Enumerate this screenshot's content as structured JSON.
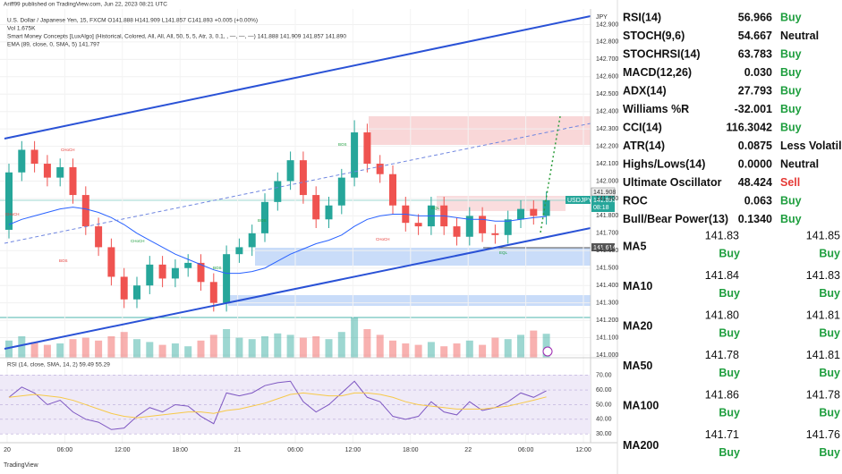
{
  "header": {
    "publisher": "Ariff99 published on TradingView.com, Jun 22, 2023 08:21 UTC",
    "symbol_line": "U.S. Dollar / Japanese Yen, 15, FXCM  O141.888 H141.909 L141.857 C141.893 +0.005 (+0.00%)",
    "volume_line": "Vol 1.675K",
    "smc_line": "Smart Money Concepts [LuxAlgo] (Historical, Colored, All, All, All, 50, 5, 5, Atr, 3, 0.1, , —, —, —)  141.888 141.909 141.857 141.890",
    "ema_line": "EMA (89, close, 0, SMA, 5)  141.797",
    "currency": "JPY",
    "footer": "TradingView"
  },
  "annotations": [
    "CHoCH",
    "BOS",
    "BOS",
    "CHoCH",
    "BOS",
    "EQL",
    "CHoCH",
    "EQL",
    "CHoCH",
    "BOS"
  ],
  "price_tags": [
    "141.908",
    "USDJPY",
    "141.893",
    "08:18",
    "141.614"
  ],
  "chart_data": [
    {
      "type": "candlestick",
      "up_color": "#26a69a",
      "down_color": "#ef5350",
      "xticks": [
        "20",
        "06:00",
        "12:00",
        "18:00",
        "21",
        "06:00",
        "12:00",
        "18:00",
        "22",
        "06:00",
        "12:00"
      ],
      "open": [
        141.72,
        142.05,
        142.18,
        142.1,
        142.02,
        142.08,
        141.92,
        141.74,
        141.62,
        141.45,
        141.32,
        141.4,
        141.52,
        141.44,
        141.5,
        141.53,
        141.42,
        141.3,
        141.58,
        141.62,
        141.7,
        141.88,
        142.0,
        142.12,
        141.92,
        141.78,
        141.86,
        142.02,
        142.28,
        142.1,
        142.04,
        141.86,
        141.76,
        141.74,
        141.86,
        141.74,
        141.68,
        141.8,
        141.7,
        141.69,
        141.78,
        141.84,
        141.8
      ],
      "high": [
        142.1,
        142.23,
        142.23,
        142.15,
        142.13,
        142.13,
        141.97,
        141.79,
        141.67,
        141.5,
        141.45,
        141.57,
        141.57,
        141.55,
        141.58,
        141.58,
        141.47,
        141.63,
        141.67,
        141.75,
        141.93,
        142.05,
        142.17,
        142.17,
        141.97,
        141.91,
        142.07,
        142.35,
        142.33,
        142.15,
        142.09,
        141.91,
        141.81,
        141.91,
        141.91,
        141.79,
        141.85,
        141.85,
        141.75,
        141.83,
        141.89,
        141.89,
        141.94
      ],
      "low": [
        141.67,
        142.0,
        142.05,
        141.97,
        141.97,
        141.87,
        141.69,
        141.57,
        141.4,
        141.27,
        141.27,
        141.35,
        141.39,
        141.39,
        141.45,
        141.37,
        141.25,
        141.25,
        141.53,
        141.57,
        141.65,
        141.83,
        141.95,
        141.87,
        141.73,
        141.73,
        141.81,
        141.97,
        142.05,
        141.99,
        141.81,
        141.71,
        141.69,
        141.69,
        141.69,
        141.63,
        141.63,
        141.65,
        141.64,
        141.64,
        141.73,
        141.75,
        141.75
      ],
      "close": [
        142.05,
        142.18,
        142.1,
        142.02,
        142.08,
        141.92,
        141.74,
        141.62,
        141.45,
        141.32,
        141.4,
        141.52,
        141.44,
        141.5,
        141.53,
        141.42,
        141.3,
        141.58,
        141.62,
        141.7,
        141.88,
        142.0,
        142.12,
        141.92,
        141.78,
        141.86,
        142.02,
        142.28,
        142.1,
        142.04,
        141.86,
        141.76,
        141.74,
        141.86,
        141.74,
        141.68,
        141.8,
        141.7,
        141.69,
        141.78,
        141.84,
        141.8,
        141.89
      ],
      "volume": [
        1.2,
        1.5,
        1.1,
        0.9,
        1.0,
        1.3,
        1.4,
        1.2,
        1.5,
        1.8,
        1.3,
        1.1,
        0.9,
        1.0,
        0.8,
        1.2,
        1.6,
        2.0,
        1.4,
        1.3,
        1.5,
        1.7,
        1.6,
        1.4,
        1.5,
        1.3,
        1.8,
        2.8,
        2.0,
        1.6,
        1.2,
        1.0,
        0.9,
        1.1,
        0.8,
        1.0,
        1.2,
        0.9,
        1.4,
        1.3,
        1.6,
        1.9,
        1.675
      ],
      "series": [
        {
          "name": "EMA",
          "color": "#2962ff",
          "values": [
            141.75,
            141.78,
            141.8,
            141.82,
            141.84,
            141.85,
            141.84,
            141.82,
            141.79,
            141.75,
            141.7,
            141.66,
            141.62,
            141.58,
            141.55,
            141.52,
            141.49,
            141.47,
            141.47,
            141.48,
            141.5,
            141.54,
            141.58,
            141.61,
            141.64,
            141.66,
            141.69,
            141.74,
            141.78,
            141.8,
            141.81,
            141.81,
            141.8,
            141.8,
            141.8,
            141.79,
            141.78,
            141.78,
            141.77,
            141.77,
            141.78,
            141.79,
            141.797
          ]
        }
      ],
      "ylim": [
        141.0,
        143.0
      ],
      "yticks": [
        {
          "value": 141.0,
          "label": "141.000"
        },
        {
          "value": 141.1,
          "label": "141.100"
        },
        {
          "value": 141.2,
          "label": "141.200"
        },
        {
          "value": 141.3,
          "label": "141.300"
        },
        {
          "value": 141.4,
          "label": "141.400"
        },
        {
          "value": 141.5,
          "label": "141.500"
        },
        {
          "value": 141.6,
          "label": "141.600"
        },
        {
          "value": 141.7,
          "label": "141.700"
        },
        {
          "value": 141.8,
          "label": "141.800"
        },
        {
          "value": 141.9,
          "label": "141.900"
        },
        {
          "value": 142.0,
          "label": "142.000"
        },
        {
          "value": 142.1,
          "label": "142.100"
        },
        {
          "value": 142.2,
          "label": "142.200"
        },
        {
          "value": 142.3,
          "label": "142.300"
        },
        {
          "value": 142.4,
          "label": "142.400"
        },
        {
          "value": 142.5,
          "label": "142.500"
        },
        {
          "value": 142.6,
          "label": "142.600"
        },
        {
          "value": 142.7,
          "label": "142.700"
        },
        {
          "value": 142.8,
          "label": "142.800"
        },
        {
          "value": 142.9,
          "label": "142.900"
        }
      ]
    },
    {
      "type": "line",
      "title": "RSI (14, close, SMA, 14, 2)  59.49  55.29",
      "series": [
        {
          "name": "RSI",
          "color": "#7e57c2",
          "values": [
            55,
            62,
            58,
            50,
            53,
            45,
            40,
            38,
            33,
            34,
            42,
            48,
            45,
            50,
            49,
            42,
            37,
            58,
            56,
            58,
            63,
            65,
            66,
            52,
            45,
            50,
            58,
            66,
            55,
            52,
            42,
            40,
            42,
            52,
            45,
            43,
            52,
            46,
            48,
            52,
            58,
            55,
            59.49
          ]
        },
        {
          "name": "SMA",
          "color": "#f7c948",
          "values": [
            55,
            56,
            57,
            56,
            55,
            53,
            50,
            47,
            44,
            42,
            41,
            42,
            43,
            44,
            45,
            45,
            44,
            46,
            47,
            49,
            51,
            54,
            57,
            58,
            57,
            56,
            56,
            58,
            58,
            57,
            55,
            52,
            50,
            49,
            48,
            47,
            47,
            47,
            48,
            49,
            51,
            53,
            55.29
          ]
        }
      ],
      "ylim": [
        24,
        79
      ],
      "yticks": [
        {
          "value": 30,
          "label": "30.00"
        },
        {
          "value": 40,
          "label": "40.00"
        },
        {
          "value": 50,
          "label": "50.00"
        },
        {
          "value": 60,
          "label": "60.00"
        },
        {
          "value": 70,
          "label": "70.00"
        }
      ]
    }
  ],
  "table": {
    "rows": [
      {
        "name": "RSI(14)",
        "value": "56.966",
        "signal": "Buy",
        "color": "#1e9e3e"
      },
      {
        "name": "STOCH(9,6)",
        "value": "54.667",
        "signal": "Neutral",
        "color": "#111111"
      },
      {
        "name": "STOCHRSI(14)",
        "value": "63.783",
        "signal": "Buy",
        "color": "#1e9e3e"
      },
      {
        "name": "MACD(12,26)",
        "value": "0.030",
        "signal": "Buy",
        "color": "#1e9e3e"
      },
      {
        "name": "ADX(14)",
        "value": "27.793",
        "signal": "Buy",
        "color": "#1e9e3e"
      },
      {
        "name": "Williams %R",
        "value": "-32.001",
        "signal": "Buy",
        "color": "#1e9e3e"
      },
      {
        "name": "CCI(14)",
        "value": "116.3042",
        "signal": "Buy",
        "color": "#1e9e3e"
      },
      {
        "name": "ATR(14)",
        "value": "0.0875",
        "signal": "Less Volatility",
        "color": "#111111"
      },
      {
        "name": "Highs/Lows(14)",
        "value": "0.0000",
        "signal": "Neutral",
        "color": "#111111"
      },
      {
        "name": "Ultimate Oscillator",
        "value": "48.424",
        "signal": "Sell",
        "color": "#e53935"
      },
      {
        "name": "ROC",
        "value": "0.063",
        "signal": "Buy",
        "color": "#1e9e3e"
      },
      {
        "name": "Bull/Bear Power(13)",
        "value": "0.1340",
        "signal": "Buy",
        "color": "#1e9e3e"
      }
    ],
    "ma_rows": [
      {
        "name": "MA5",
        "v1": "141.83",
        "s1": "Buy",
        "v2": "141.85",
        "s2": "Buy"
      },
      {
        "name": "MA10",
        "v1": "141.84",
        "s1": "Buy",
        "v2": "141.83",
        "s2": "Buy"
      },
      {
        "name": "MA20",
        "v1": "141.80",
        "s1": "Buy",
        "v2": "141.81",
        "s2": "Buy"
      },
      {
        "name": "MA50",
        "v1": "141.78",
        "s1": "Buy",
        "v2": "141.81",
        "s2": "Buy"
      },
      {
        "name": "MA100",
        "v1": "141.86",
        "s1": "Buy",
        "v2": "141.78",
        "s2": "Buy"
      },
      {
        "name": "MA200",
        "v1": "141.71",
        "s1": "Buy",
        "v2": "141.76",
        "s2": "Buy"
      }
    ],
    "ma_color": "#1e9e3e"
  }
}
